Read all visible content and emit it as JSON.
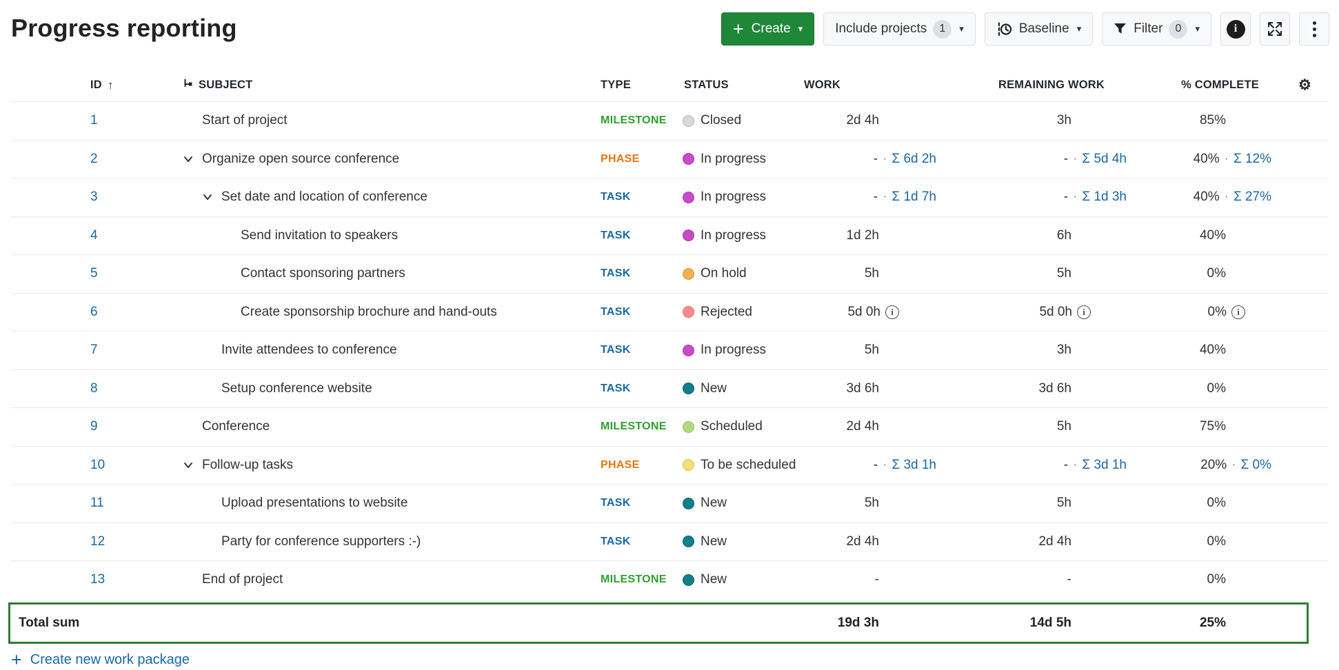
{
  "page_title": "Progress reporting",
  "icons": {
    "sort_asc": "↑",
    "gear": "⚙",
    "caret": "▾",
    "plus": "+",
    "info": "i",
    "kebab": "⋮"
  },
  "colors": {
    "accent_green": "#1F8838",
    "link_blue": "#1A67A3",
    "total_border": "#2E7D32",
    "type": {
      "MILESTONE": "#2F9F2F",
      "PHASE": "#E8740E",
      "TASK": "#1A67A3"
    }
  },
  "toolbar": {
    "create_label": "Create",
    "include_projects_label": "Include projects",
    "include_projects_count": "1",
    "baseline_label": "Baseline",
    "filter_label": "Filter",
    "filter_count": "0"
  },
  "table": {
    "value_separator": "·",
    "columns": {
      "id": "ID",
      "subject": "SUBJECT",
      "type": "TYPE",
      "status": "STATUS",
      "work": "WORK",
      "remaining_work": "REMAINING WORK",
      "percent_complete": "% COMPLETE"
    },
    "rows": [
      {
        "id": "1",
        "level": 0,
        "chevron": false,
        "subject": "Start of project",
        "type": "MILESTONE",
        "status": "Closed",
        "status_color": "#D8D8D8",
        "status_border": "#B9B9B9",
        "work": {
          "value": "2d 4h"
        },
        "remaining": {
          "value": "3h"
        },
        "complete": {
          "value": "85%"
        }
      },
      {
        "id": "2",
        "level": 0,
        "chevron": true,
        "subject": "Organize open source conference",
        "type": "PHASE",
        "status": "In progress",
        "status_color": "#C94BC9",
        "status_border": "#A83AA8",
        "work": {
          "value": "-",
          "sum": "Σ 6d 2h"
        },
        "remaining": {
          "value": "-",
          "sum": "Σ 5d 4h"
        },
        "complete": {
          "value": "40%",
          "sum": "Σ 12%"
        }
      },
      {
        "id": "3",
        "level": 1,
        "chevron": true,
        "subject": "Set date and location of conference",
        "type": "TASK",
        "status": "In progress",
        "status_color": "#C94BC9",
        "status_border": "#A83AA8",
        "work": {
          "value": "-",
          "sum": "Σ 1d 7h"
        },
        "remaining": {
          "value": "-",
          "sum": "Σ 1d 3h"
        },
        "complete": {
          "value": "40%",
          "sum": "Σ 27%"
        }
      },
      {
        "id": "4",
        "level": 2,
        "chevron": false,
        "subject": "Send invitation to speakers",
        "type": "TASK",
        "status": "In progress",
        "status_color": "#C94BC9",
        "status_border": "#A83AA8",
        "work": {
          "value": "1d 2h"
        },
        "remaining": {
          "value": "6h"
        },
        "complete": {
          "value": "40%"
        }
      },
      {
        "id": "5",
        "level": 2,
        "chevron": false,
        "subject": "Contact sponsoring partners",
        "type": "TASK",
        "status": "On hold",
        "status_color": "#F2B04E",
        "status_border": "#D89A36",
        "work": {
          "value": "5h"
        },
        "remaining": {
          "value": "5h"
        },
        "complete": {
          "value": "0%"
        }
      },
      {
        "id": "6",
        "level": 2,
        "chevron": false,
        "subject": "Create sponsorship brochure and hand-outs",
        "type": "TASK",
        "status": "Rejected",
        "status_color": "#F98B8B",
        "status_border": "#E76D6D",
        "work": {
          "value": "5d 0h",
          "info": true
        },
        "remaining": {
          "value": "5d 0h",
          "info": true
        },
        "complete": {
          "value": "0%",
          "info": true
        }
      },
      {
        "id": "7",
        "level": 1,
        "chevron": false,
        "subject": "Invite attendees to conference",
        "type": "TASK",
        "status": "In progress",
        "status_color": "#C94BC9",
        "status_border": "#A83AA8",
        "work": {
          "value": "5h"
        },
        "remaining": {
          "value": "3h"
        },
        "complete": {
          "value": "40%"
        }
      },
      {
        "id": "8",
        "level": 1,
        "chevron": false,
        "subject": "Setup conference website",
        "type": "TASK",
        "status": "New",
        "status_color": "#12808C",
        "status_border": "#0A626C",
        "work": {
          "value": "3d 6h"
        },
        "remaining": {
          "value": "3d 6h"
        },
        "complete": {
          "value": "0%"
        }
      },
      {
        "id": "9",
        "level": 0,
        "chevron": false,
        "subject": "Conference",
        "type": "MILESTONE",
        "status": "Scheduled",
        "status_color": "#B3D97F",
        "status_border": "#96C35C",
        "work": {
          "value": "2d 4h"
        },
        "remaining": {
          "value": "5h"
        },
        "complete": {
          "value": "75%"
        }
      },
      {
        "id": "10",
        "level": 0,
        "chevron": true,
        "subject": "Follow-up tasks",
        "type": "PHASE",
        "status": "To be scheduled",
        "status_color": "#F2DF76",
        "status_border": "#D9C452",
        "work": {
          "value": "-",
          "sum": "Σ 3d 1h"
        },
        "remaining": {
          "value": "-",
          "sum": "Σ 3d 1h"
        },
        "complete": {
          "value": "20%",
          "sum": "Σ 0%"
        }
      },
      {
        "id": "11",
        "level": 1,
        "chevron": false,
        "subject": "Upload presentations to website",
        "type": "TASK",
        "status": "New",
        "status_color": "#12808C",
        "status_border": "#0A626C",
        "work": {
          "value": "5h"
        },
        "remaining": {
          "value": "5h"
        },
        "complete": {
          "value": "0%"
        }
      },
      {
        "id": "12",
        "level": 1,
        "chevron": false,
        "subject": "Party for conference supporters :-)",
        "type": "TASK",
        "status": "New",
        "status_color": "#12808C",
        "status_border": "#0A626C",
        "work": {
          "value": "2d 4h"
        },
        "remaining": {
          "value": "2d 4h"
        },
        "complete": {
          "value": "0%"
        }
      },
      {
        "id": "13",
        "level": 0,
        "chevron": false,
        "subject": "End of project",
        "type": "MILESTONE",
        "status": "New",
        "status_color": "#12808C",
        "status_border": "#0A626C",
        "work": {
          "value": "-"
        },
        "remaining": {
          "value": "-"
        },
        "complete": {
          "value": "0%"
        }
      }
    ],
    "total": {
      "label": "Total sum",
      "work": "19d 3h",
      "remaining_work": "14d 5h",
      "percent_complete": "25%"
    }
  },
  "footer": {
    "create_link": "Create new work package"
  }
}
